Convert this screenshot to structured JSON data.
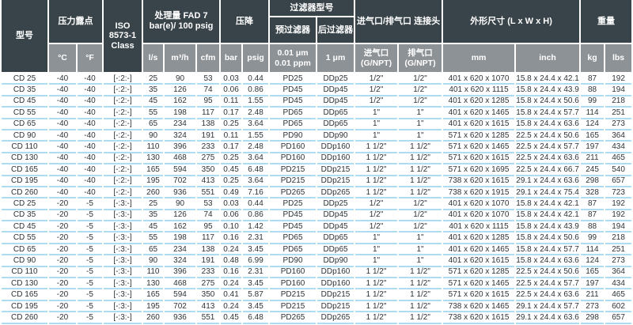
{
  "table": {
    "header": {
      "model": "型号",
      "dew_point": {
        "title": "压力露点",
        "c": "°C",
        "f": "°F"
      },
      "iso": "ISO 8573-1 Class",
      "capacity": {
        "title": "处理量 FAD 7 bar(e)/ 100 psig",
        "ls": "l/s",
        "m3h": "m³/h",
        "cfm": "cfm"
      },
      "pressure_drop": {
        "title": "压降",
        "bar": "bar",
        "psig": "psig"
      },
      "filter": {
        "title": "过滤器型号",
        "pre": "预过滤器",
        "post": "后过滤器",
        "pre_unit": "0.01 μm 0.01 ppm",
        "post_unit": "1 μm"
      },
      "connection": {
        "title": "进气口/排气口 连接头",
        "inlet": "进气口 (G/NPT)",
        "outlet": "排气口 (G/NPT)"
      },
      "dimensions": {
        "title": "外形尺寸 (L x W x H)",
        "mm": "mm",
        "inch": "inch"
      },
      "weight": {
        "title": "重量",
        "kg": "kg",
        "lbs": "lbs"
      }
    },
    "column_keys": [
      "model",
      "dew-c",
      "dew-f",
      "iso-class",
      "flow-ls",
      "flow-m3h",
      "flow-cfm",
      "drop-bar",
      "drop-psig",
      "pre-filter",
      "after-filter",
      "inlet-connection",
      "outlet-connection",
      "dims-mm",
      "dims-inch",
      "weight-kg",
      "weight-lbs"
    ],
    "rows": [
      [
        "CD 25",
        "-40",
        "-40",
        "[-:2:-]",
        "25",
        "90",
        "53",
        "0.03",
        "0.44",
        "PD25",
        "DDp25",
        "1/2\"",
        "1/2\"",
        "401 x 620 x 1070",
        "15.8 x 24.4 x 42.1",
        "87",
        "192"
      ],
      [
        "CD 35",
        "-40",
        "-40",
        "[-:2:-]",
        "35",
        "126",
        "74",
        "0.06",
        "0.86",
        "PD45",
        "DDp45",
        "1/2\"",
        "1/2\"",
        "401 x 620 x 1115",
        "15.8 x 24.4 x 43.9",
        "88",
        "194"
      ],
      [
        "CD 45",
        "-40",
        "-40",
        "[-:2:-]",
        "45",
        "162",
        "95",
        "0.11",
        "1.55",
        "PD45",
        "DDp45",
        "1/2\"",
        "1/2\"",
        "401 x 620 x 1285",
        "15.8 x 24.4 x 50.6",
        "99",
        "218"
      ],
      [
        "CD 55",
        "-40",
        "-40",
        "[-:2:-]",
        "55",
        "198",
        "117",
        "0.17",
        "2.48",
        "PD65",
        "DDp65",
        "1\"",
        "1\"",
        "401 x 620 x 1465",
        "15.8 x 24.4 x 57.7",
        "114",
        "251"
      ],
      [
        "CD 65",
        "-40",
        "-40",
        "[-:2:-]",
        "65",
        "234",
        "138",
        "0.25",
        "3.64",
        "PD65",
        "DDp65",
        "1\"",
        "1\"",
        "401 x 620 x 1615",
        "15.8 x 24.4 x 63.6",
        "124",
        "273"
      ],
      [
        "CD 90",
        "-40",
        "-40",
        "[-:2:-]",
        "90",
        "324",
        "191",
        "0.11",
        "1.55",
        "PD90",
        "DDp90",
        "1\"",
        "1\"",
        "571 x 620 x 1285",
        "22.5 x 24.4 x 50.6",
        "165",
        "364"
      ],
      [
        "CD 110",
        "-40",
        "-40",
        "[-:2:-]",
        "110",
        "396",
        "233",
        "0.17",
        "2.48",
        "PD160",
        "DDp160",
        "1 1/2\"",
        "1 1/2\"",
        "571 x 620 x 1465",
        "22.5 x 24.4 x 57.7",
        "197",
        "434"
      ],
      [
        "CD 130",
        "-40",
        "-40",
        "[-:2:-]",
        "130",
        "468",
        "275",
        "0.25",
        "3.64",
        "PD160",
        "DDp160",
        "1 1/2\"",
        "1 1/2\"",
        "571 x 620 x 1615",
        "22.5 x 24.4 x 63.6",
        "211",
        "465"
      ],
      [
        "CD 165",
        "-40",
        "-40",
        "[-:2:-]",
        "165",
        "594",
        "350",
        "0.45",
        "6.48",
        "PD215",
        "DDp215",
        "1 1/2\"",
        "1 1/2\"",
        "571 x 620 x 1695",
        "22.5 x 24.4 x 66.7",
        "245",
        "540"
      ],
      [
        "CD 195",
        "-40",
        "-40",
        "[-:2:-]",
        "195",
        "702",
        "413",
        "0.25",
        "3.64",
        "PD215",
        "DDp215",
        "1 1/2\"",
        "1 1/2\"",
        "738 x 620 x 1615",
        "29.1 x 24.4 x 63.6",
        "298",
        "657"
      ],
      [
        "CD 260",
        "-40",
        "-40",
        "[-:2:-]",
        "260",
        "936",
        "551",
        "0.49",
        "7.16",
        "PD265",
        "DDp265",
        "1 1/2\"",
        "1 1/2\"",
        "738 x 620 x 1915",
        "29.1 x 24.4 x 75.4",
        "328",
        "723"
      ],
      [
        "CD 25",
        "-20",
        "-5",
        "[-:3:-]",
        "25",
        "90",
        "53",
        "0.03",
        "0.44",
        "PD25",
        "DDp25",
        "1/2\"",
        "1/2\"",
        "401 x 620 x 1070",
        "15.8 x 24.4 x 42.1",
        "87",
        "192"
      ],
      [
        "CD 35",
        "-20",
        "-5",
        "[-:3:-]",
        "35",
        "126",
        "74",
        "0.06",
        "0.86",
        "PD45",
        "DDp45",
        "1/2\"",
        "1/2\"",
        "401 x 620 x 1070",
        "15.8 x 24.4 x 42.1",
        "87",
        "192"
      ],
      [
        "CD 45",
        "-20",
        "-5",
        "[-:3:-]",
        "45",
        "162",
        "95",
        "0.10",
        "1.42",
        "PD45",
        "DDp45",
        "1/2\"",
        "1/2\"",
        "401 x 620 x 1115",
        "15.8 x 24.4 x 43.9",
        "88",
        "194"
      ],
      [
        "CD 55",
        "-20",
        "-5",
        "[-:3:-]",
        "55",
        "198",
        "117",
        "0.16",
        "2.31",
        "PD65",
        "DDp65",
        "1\"",
        "1\"",
        "401 x 620 x 1285",
        "15.8 x 24.4 x 50.6",
        "99",
        "218"
      ],
      [
        "CD 65",
        "-20",
        "-5",
        "[-:3:-]",
        "65",
        "234",
        "138",
        "0.24",
        "3.45",
        "PD65",
        "DDp65",
        "1\"",
        "1\"",
        "401 x 620 x 1465",
        "15.8 x 24.4 x 57.7",
        "114",
        "251"
      ],
      [
        "CD 90",
        "-20",
        "-5",
        "[-:3:-]",
        "90",
        "324",
        "191",
        "0.48",
        "6.99",
        "PD90",
        "DDp90",
        "1\"",
        "1\"",
        "401 x 620 x 1615",
        "15.8 x 24.4 x 63.6",
        "124",
        "273"
      ],
      [
        "CD 110",
        "-20",
        "-5",
        "[-:3:-]",
        "110",
        "396",
        "233",
        "0.16",
        "2.31",
        "PD160",
        "DDp160",
        "1 1/2\"",
        "1 1/2\"",
        "571 x 620 x 1285",
        "22.5 x 24.4 x 50.6",
        "165",
        "364"
      ],
      [
        "CD 130",
        "-20",
        "-5",
        "[-:3:-]",
        "130",
        "468",
        "275",
        "0.24",
        "3.45",
        "PD160",
        "DDp160",
        "1 1/2\"",
        "1 1/2\"",
        "571 x 620 x 1465",
        "22.5 x 24.4 x 57.7",
        "197",
        "434"
      ],
      [
        "CD 165",
        "-20",
        "-5",
        "[-:3:-]",
        "165",
        "594",
        "350",
        "0.41",
        "5.87",
        "PD215",
        "DDp215",
        "1 1/2\"",
        "1 1/2\"",
        "571 x 620 x 1615",
        "22.5 x 24.4 x 63.6",
        "211",
        "465"
      ],
      [
        "CD 195",
        "-20",
        "-5",
        "[-:3:-]",
        "195",
        "702",
        "413",
        "0.24",
        "3.45",
        "PD215",
        "DDp215",
        "1 1/2\"",
        "1 1/2\"",
        "738 x 620 x 1465",
        "29.1 x 24.4 x 57.7",
        "273",
        "602"
      ],
      [
        "CD 260",
        "-20",
        "-5",
        "[-:3:-]",
        "260",
        "936",
        "551",
        "0.45",
        "6.48",
        "PD265",
        "DDp265",
        "1 1/2\"",
        "1 1/2\"",
        "738 x 620 x 1615",
        "29.1 x 24.4 x 63.6",
        "298",
        "657"
      ]
    ]
  },
  "colors": {
    "header_dark": "#39444a",
    "header_gray": "#8d9296",
    "row_divider_blue": "#aedcf0",
    "header_text": "#ffffff",
    "body_text": "#2c3438"
  }
}
